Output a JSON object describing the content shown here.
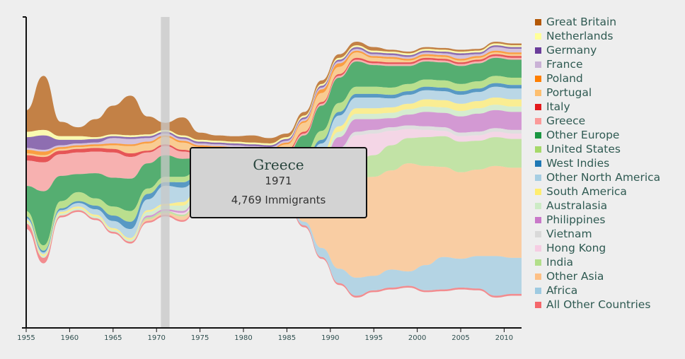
{
  "chart_data": {
    "type": "area",
    "variant": "streamgraph",
    "x": [
      1955,
      1957,
      1959,
      1961,
      1963,
      1965,
      1967,
      1969,
      1971,
      1973,
      1975,
      1977,
      1979,
      1981,
      1983,
      1985,
      1987,
      1989,
      1991,
      1993,
      1995,
      1997,
      1999,
      2001,
      2003,
      2005,
      2007,
      2009,
      2011,
      2012
    ],
    "x_ticks": [
      "1955",
      "1960",
      "1965",
      "1970",
      "1975",
      "1980",
      "1985",
      "1990",
      "1995",
      "2000",
      "2005",
      "2010"
    ],
    "xlim": [
      1955,
      2012
    ],
    "series": [
      {
        "name": "Great Britain",
        "color": "#b35806",
        "values": [
          12,
          30,
          8,
          5,
          10,
          16,
          22,
          10,
          4,
          10,
          4,
          3,
          3,
          4,
          3,
          2,
          2,
          2,
          2,
          2,
          2,
          1,
          1,
          1,
          1,
          1,
          1,
          1,
          1,
          1
        ]
      },
      {
        "name": "Netherlands",
        "color": "#ffff99",
        "values": [
          3,
          3,
          2,
          2,
          1,
          1,
          1,
          1,
          1,
          1,
          1,
          1,
          1,
          1,
          1,
          1,
          1,
          1,
          1,
          1,
          1,
          1,
          1,
          1,
          1,
          1,
          1,
          1,
          1,
          1
        ]
      },
      {
        "name": "Germany",
        "color": "#6a3d9a",
        "values": [
          6,
          8,
          3,
          2,
          2,
          1,
          1,
          1,
          1,
          1,
          1,
          1,
          1,
          1,
          1,
          1,
          1,
          1,
          1,
          1,
          1,
          1,
          1,
          1,
          1,
          1,
          1,
          1,
          1,
          1
        ]
      },
      {
        "name": "France",
        "color": "#cab2d6",
        "values": [
          1,
          1,
          1,
          1,
          1,
          3,
          3,
          2,
          1,
          1,
          1,
          1,
          1,
          1,
          1,
          1,
          1,
          1,
          1,
          1,
          1,
          1,
          1,
          1,
          1,
          2,
          1,
          2,
          2,
          2
        ]
      },
      {
        "name": "Poland",
        "color": "#ff7f00",
        "values": [
          2,
          2,
          1,
          1,
          1,
          1,
          1,
          1,
          1,
          1,
          1,
          1,
          1,
          1,
          1,
          1,
          1,
          2,
          2,
          1,
          1,
          1,
          1,
          1,
          1,
          1,
          1,
          1,
          1,
          1
        ]
      },
      {
        "name": "Portugal",
        "color": "#fdbf6f",
        "values": [
          1,
          1,
          1,
          1,
          1,
          2,
          4,
          4,
          4,
          4,
          3,
          2,
          2,
          2,
          2,
          3,
          5,
          5,
          4,
          3,
          2,
          2,
          1,
          1,
          1,
          1,
          1,
          1,
          1,
          1
        ]
      },
      {
        "name": "Italy",
        "color": "#e31a1c",
        "values": [
          3,
          3,
          2,
          2,
          2,
          2,
          2,
          1,
          1,
          1,
          1,
          1,
          1,
          1,
          1,
          1,
          1,
          1,
          1,
          1,
          1,
          1,
          1,
          1,
          1,
          1,
          1,
          1,
          1,
          1
        ]
      },
      {
        "name": "Greece",
        "color": "#fb9a99",
        "values": [
          14,
          16,
          12,
          12,
          12,
          14,
          12,
          6,
          5,
          4,
          2,
          2,
          2,
          2,
          1,
          1,
          1,
          1,
          1,
          1,
          1,
          1,
          1,
          1,
          1,
          1,
          1,
          1,
          1,
          1
        ]
      },
      {
        "name": "Other Europe",
        "color": "#1a9641",
        "values": [
          14,
          30,
          14,
          10,
          14,
          16,
          18,
          14,
          12,
          10,
          6,
          5,
          5,
          5,
          4,
          5,
          10,
          14,
          14,
          14,
          12,
          12,
          10,
          10,
          10,
          10,
          10,
          10,
          10,
          10
        ]
      },
      {
        "name": "United States",
        "color": "#a6d96a",
        "values": [
          3,
          3,
          4,
          5,
          4,
          5,
          6,
          3,
          3,
          3,
          3,
          3,
          3,
          3,
          3,
          3,
          4,
          5,
          5,
          4,
          4,
          4,
          4,
          4,
          4,
          4,
          4,
          4,
          4,
          4
        ]
      },
      {
        "name": "West Indies",
        "color": "#1f78b4",
        "values": [
          1,
          1,
          1,
          1,
          2,
          3,
          4,
          3,
          2,
          3,
          2,
          2,
          2,
          2,
          2,
          2,
          2,
          2,
          2,
          2,
          2,
          2,
          2,
          2,
          2,
          2,
          2,
          2,
          2,
          2
        ]
      },
      {
        "name": "Other North America",
        "color": "#a6cee3",
        "values": [
          1,
          1,
          1,
          2,
          3,
          4,
          5,
          6,
          10,
          8,
          4,
          3,
          3,
          3,
          3,
          3,
          4,
          5,
          6,
          6,
          6,
          5,
          5,
          5,
          5,
          5,
          5,
          6,
          6,
          6
        ]
      },
      {
        "name": "South America",
        "color": "#ffed6f",
        "values": [
          1,
          1,
          1,
          1,
          1,
          1,
          1,
          1,
          1,
          2,
          2,
          2,
          2,
          2,
          1,
          1,
          2,
          3,
          3,
          3,
          3,
          3,
          3,
          4,
          4,
          4,
          4,
          4,
          4,
          4
        ]
      },
      {
        "name": "Australasia",
        "color": "#ccebc5",
        "values": [
          1,
          1,
          1,
          1,
          1,
          1,
          1,
          2,
          2,
          3,
          3,
          3,
          2,
          2,
          2,
          2,
          3,
          3,
          3,
          3,
          3,
          3,
          3,
          3,
          3,
          3,
          3,
          3,
          3,
          3
        ]
      },
      {
        "name": "Philippines",
        "color": "#c978c9",
        "values": [
          0,
          0,
          0,
          0,
          0,
          0,
          0,
          1,
          1,
          1,
          1,
          1,
          1,
          1,
          1,
          1,
          2,
          3,
          6,
          7,
          6,
          5,
          6,
          8,
          8,
          9,
          10,
          10,
          10,
          10
        ]
      },
      {
        "name": "Vietnam",
        "color": "#d9d9d9",
        "values": [
          0,
          0,
          0,
          0,
          0,
          0,
          0,
          0,
          0,
          0,
          1,
          2,
          2,
          2,
          2,
          2,
          2,
          2,
          2,
          2,
          2,
          2,
          2,
          2,
          2,
          2,
          2,
          2,
          2,
          2
        ]
      },
      {
        "name": "Hong Kong",
        "color": "#f6cde3",
        "values": [
          0,
          0,
          0,
          0,
          0,
          0,
          0,
          0,
          0,
          1,
          1,
          1,
          1,
          1,
          2,
          3,
          5,
          8,
          12,
          14,
          12,
          8,
          5,
          4,
          3,
          3,
          3,
          3,
          3,
          3
        ]
      },
      {
        "name": "India",
        "color": "#b2df8a",
        "values": [
          0,
          0,
          0,
          0,
          0,
          0,
          0,
          1,
          1,
          1,
          1,
          1,
          1,
          1,
          1,
          1,
          2,
          4,
          8,
          10,
          12,
          14,
          14,
          16,
          17,
          17,
          16,
          16,
          16,
          16
        ]
      },
      {
        "name": "Other Asia",
        "color": "#fdc086",
        "values": [
          0,
          0,
          0,
          0,
          0,
          0,
          0,
          1,
          1,
          2,
          2,
          2,
          2,
          2,
          2,
          4,
          12,
          30,
          45,
          55,
          55,
          55,
          60,
          55,
          50,
          48,
          48,
          50,
          50,
          50
        ]
      },
      {
        "name": "Africa",
        "color": "#9ecae1",
        "values": [
          0,
          0,
          0,
          0,
          0,
          0,
          0,
          0,
          0,
          0,
          0,
          0,
          0,
          0,
          0,
          1,
          2,
          5,
          8,
          10,
          8,
          10,
          8,
          14,
          18,
          16,
          18,
          22,
          20,
          20
        ]
      },
      {
        "name": "All Other Countries",
        "color": "#f4676b",
        "values": [
          3,
          3,
          1,
          1,
          1,
          1,
          1,
          1,
          1,
          1,
          1,
          1,
          1,
          1,
          1,
          1,
          1,
          1,
          1,
          1,
          1,
          1,
          1,
          1,
          1,
          1,
          1,
          1,
          1,
          1
        ]
      }
    ],
    "highlight": {
      "series": "Greece",
      "year": 1971,
      "value": 4769
    },
    "legend_position": "right"
  },
  "tooltip": {
    "title": "Greece",
    "year": "1971",
    "value_text": "4,769 Immigrants"
  }
}
